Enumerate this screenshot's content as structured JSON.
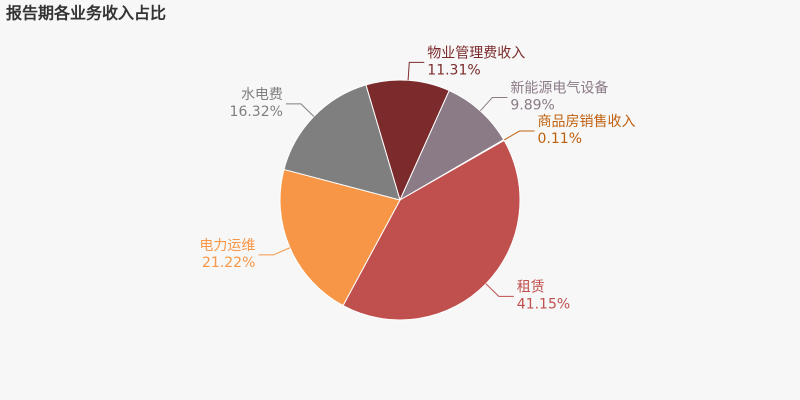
{
  "chart_data": {
    "type": "pie",
    "title": "报告期各业务收入占比",
    "categories": [
      "物业管理费收入",
      "新能源电气设备",
      "商品房销售收入",
      "租赁",
      "电力运维",
      "水电费"
    ],
    "values": [
      11.31,
      9.89,
      0.11,
      41.15,
      21.22,
      16.32
    ],
    "value_labels": [
      "11.31%",
      "9.89%",
      "0.11%",
      "41.15%",
      "21.22%",
      "16.32%"
    ],
    "colors": [
      "#7b2b2c",
      "#8b7b87",
      "#c0600e",
      "#c0504d",
      "#f79646",
      "#7f7f7f"
    ]
  }
}
